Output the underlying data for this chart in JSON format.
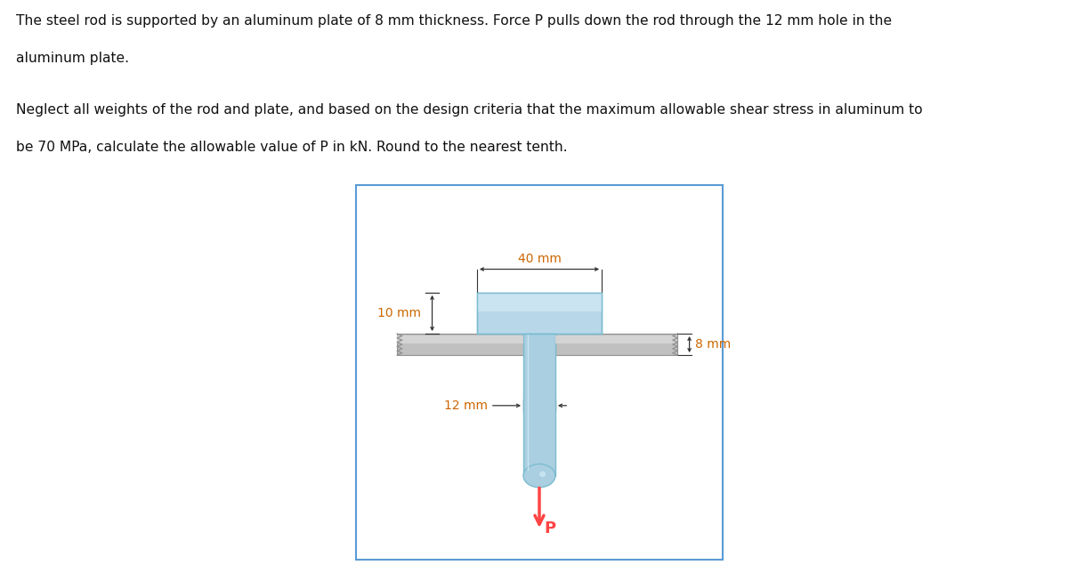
{
  "text1": "The steel rod is supported by an aluminum plate of 8 mm thickness. Force P pulls down the rod through the 12 mm hole in the",
  "text2": "aluminum plate.",
  "text3": "Neglect all weights of the rod and plate, and based on the design criteria that the maximum allowable shear stress in aluminum to",
  "text4": "be 70 MPa, calculate the allowable value of P in kN. Round to the nearest tenth.",
  "bg_color": "#ffffff",
  "box_edge_color": "#5b9bd5",
  "rod_head_fill": "#b8d8ea",
  "rod_head_fill_light": "#d0e8f5",
  "rod_shaft_fill": "#aacfe0",
  "plate_fill": "#c0c0c0",
  "plate_fill_light": "#d8d8d8",
  "plate_edge": "#909090",
  "dim_line_color": "#333333",
  "dim_text_color": "#cc6600",
  "arrow_P_color": "#ff4444",
  "text_color": "#111111"
}
